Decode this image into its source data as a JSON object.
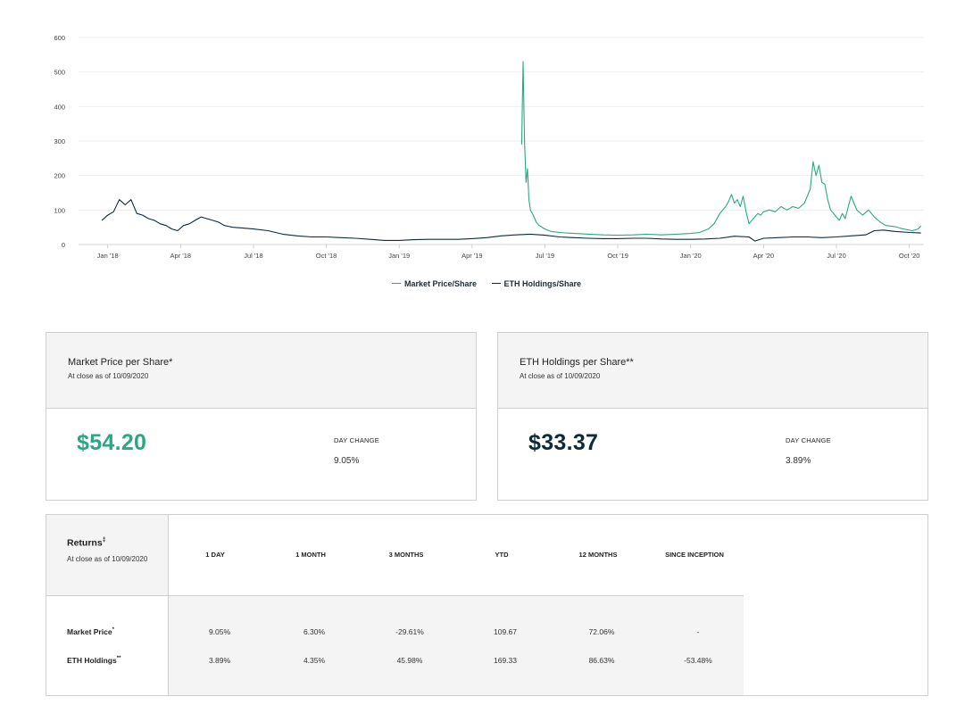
{
  "chart_data": {
    "type": "line",
    "ylim": [
      0,
      600
    ],
    "y_ticks": [
      0,
      100,
      200,
      300,
      400,
      500,
      600
    ],
    "x_tick_labels": [
      "Jan '18",
      "Apr '18",
      "Jul '18",
      "Oct '18",
      "Jan '19",
      "Apr '19",
      "Jul '19",
      "Oct '19",
      "Jan '20",
      "Apr '20",
      "Jul '20",
      "Oct '20"
    ],
    "x_range": [
      2017.9,
      2020.8
    ],
    "x_ticks": [
      2018.0,
      2018.25,
      2018.5,
      2018.75,
      2019.0,
      2019.25,
      2019.5,
      2019.75,
      2020.0,
      2020.25,
      2020.5,
      2020.75
    ],
    "series": [
      {
        "name": "Market Price/Share",
        "color": "#2aa884",
        "x": [
          2019.42,
          2019.425,
          2019.43,
          2019.435,
          2019.44,
          2019.445,
          2019.45,
          2019.46,
          2019.47,
          2019.48,
          2019.5,
          2019.52,
          2019.55,
          2019.6,
          2019.65,
          2019.7,
          2019.75,
          2019.8,
          2019.85,
          2019.9,
          2019.95,
          2020.0,
          2020.03,
          2020.06,
          2020.08,
          2020.1,
          2020.12,
          2020.13,
          2020.14,
          2020.15,
          2020.16,
          2020.17,
          2020.18,
          2020.19,
          2020.2,
          2020.21,
          2020.22,
          2020.23,
          2020.24,
          2020.25,
          2020.27,
          2020.29,
          2020.31,
          2020.33,
          2020.35,
          2020.37,
          2020.39,
          2020.41,
          2020.42,
          2020.43,
          2020.44,
          2020.45,
          2020.46,
          2020.47,
          2020.48,
          2020.5,
          2020.51,
          2020.52,
          2020.53,
          2020.55,
          2020.57,
          2020.59,
          2020.61,
          2020.63,
          2020.65,
          2020.67,
          2020.7,
          2020.73,
          2020.76,
          2020.78,
          2020.79
        ],
        "values": [
          290,
          530,
          300,
          180,
          220,
          130,
          100,
          85,
          65,
          55,
          45,
          38,
          35,
          32,
          30,
          28,
          27,
          28,
          30,
          28,
          30,
          32,
          35,
          45,
          60,
          90,
          110,
          125,
          145,
          120,
          130,
          110,
          140,
          95,
          60,
          70,
          80,
          90,
          85,
          95,
          100,
          95,
          110,
          100,
          110,
          105,
          120,
          160,
          240,
          200,
          230,
          180,
          175,
          130,
          100,
          80,
          70,
          90,
          75,
          140,
          100,
          85,
          100,
          80,
          65,
          55,
          52,
          45,
          40,
          45,
          54
        ]
      },
      {
        "name": "ETH Holdings/Share",
        "color": "#0b2b3a",
        "x": [
          2017.98,
          2018.0,
          2018.02,
          2018.04,
          2018.06,
          2018.08,
          2018.1,
          2018.12,
          2018.14,
          2018.16,
          2018.18,
          2018.2,
          2018.22,
          2018.24,
          2018.26,
          2018.28,
          2018.3,
          2018.32,
          2018.34,
          2018.36,
          2018.38,
          2018.4,
          2018.43,
          2018.46,
          2018.5,
          2018.55,
          2018.6,
          2018.65,
          2018.7,
          2018.75,
          2018.8,
          2018.85,
          2018.9,
          2018.95,
          2019.0,
          2019.05,
          2019.1,
          2019.15,
          2019.2,
          2019.25,
          2019.3,
          2019.35,
          2019.4,
          2019.45,
          2019.5,
          2019.55,
          2019.6,
          2019.65,
          2019.7,
          2019.75,
          2019.8,
          2019.85,
          2019.9,
          2019.95,
          2020.0,
          2020.05,
          2020.1,
          2020.15,
          2020.2,
          2020.22,
          2020.25,
          2020.3,
          2020.35,
          2020.4,
          2020.45,
          2020.5,
          2020.55,
          2020.6,
          2020.63,
          2020.66,
          2020.7,
          2020.75,
          2020.79
        ],
        "values": [
          70,
          85,
          95,
          130,
          115,
          130,
          90,
          85,
          75,
          70,
          60,
          55,
          45,
          40,
          55,
          60,
          70,
          80,
          75,
          70,
          65,
          55,
          50,
          48,
          45,
          40,
          30,
          25,
          22,
          22,
          20,
          18,
          15,
          12,
          12,
          14,
          15,
          15,
          15,
          17,
          20,
          25,
          28,
          30,
          27,
          22,
          20,
          18,
          17,
          17,
          18,
          18,
          16,
          15,
          15,
          16,
          18,
          24,
          22,
          10,
          18,
          20,
          22,
          22,
          20,
          22,
          25,
          28,
          40,
          42,
          38,
          35,
          33.37
        ]
      }
    ]
  },
  "cards": [
    {
      "title": "Market Price per Share*",
      "subtitle": "At close as of 10/09/2020",
      "price": "$54.20",
      "change_label": "DAY CHANGE",
      "change_value": "9.05%",
      "color": "#2aa884"
    },
    {
      "title": "ETH Holdings per Share**",
      "subtitle": "At close as of 10/09/2020",
      "price": "$33.37",
      "change_label": "DAY CHANGE",
      "change_value": "3.89%",
      "color": "#0b2b3a"
    }
  ],
  "returns": {
    "title": "Returns",
    "title_mark": "‡",
    "subtitle": "At close as of 10/09/2020",
    "columns": [
      "1 DAY",
      "1 MONTH",
      "3 MONTHS",
      "YTD",
      "12 MONTHS",
      "SINCE INCEPTION"
    ],
    "rows": [
      {
        "label": "Market Price",
        "mark": "*",
        "values": [
          "9.05%",
          "6.30%",
          "-29.61%",
          "109.67",
          "72.06%",
          "-"
        ]
      },
      {
        "label": "ETH Holdings",
        "mark": "**",
        "values": [
          "3.89%",
          "4.35%",
          "45.98%",
          "169.33",
          "86.63%",
          "-53.48%"
        ]
      }
    ]
  }
}
